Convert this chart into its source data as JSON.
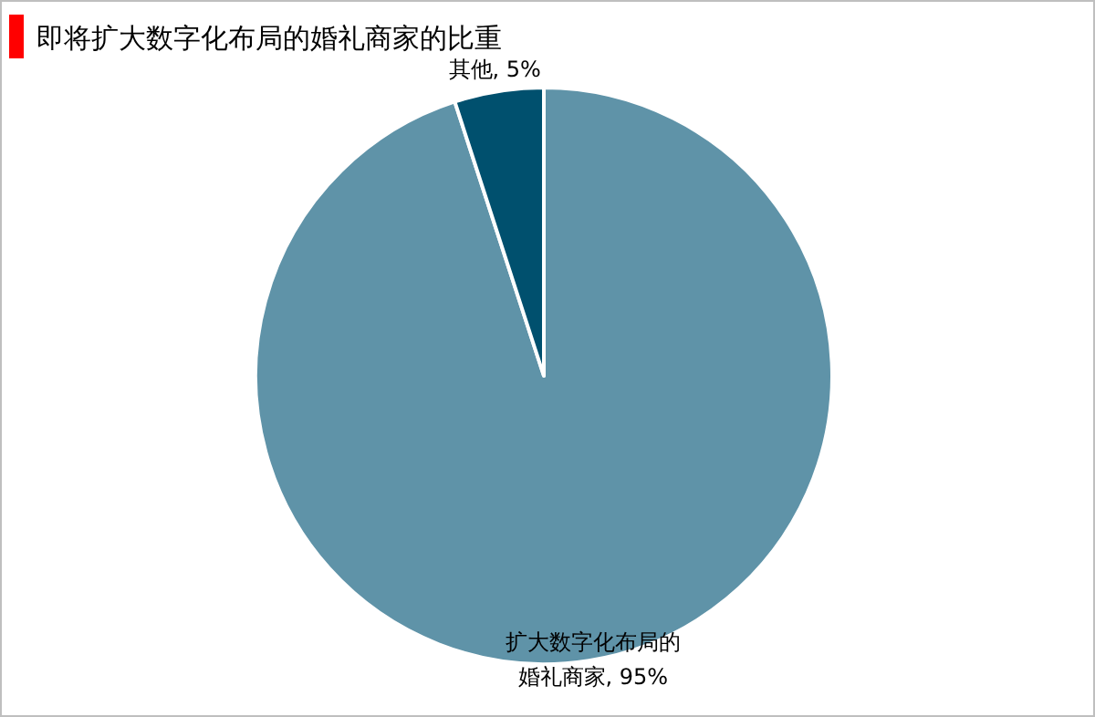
{
  "chart_data": {
    "type": "pie",
    "title": "即将扩大数字化布局的婚礼商家的比重",
    "categories": [
      "扩大数字化布局的婚礼商家",
      "其他"
    ],
    "values": [
      95,
      5
    ],
    "colors": [
      "#5f93a8",
      "#00506e"
    ],
    "value_labels": [
      "95%",
      "5%"
    ],
    "legend": false
  }
}
